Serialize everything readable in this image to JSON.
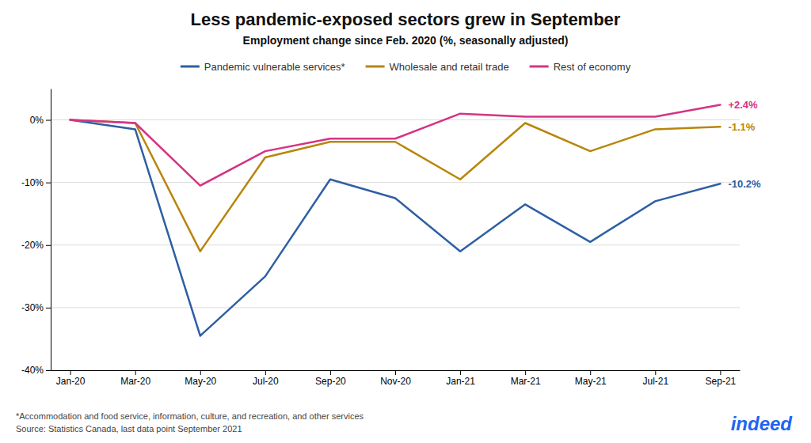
{
  "chart_data": {
    "type": "line",
    "title": "Less pandemic-exposed sectors grew in September",
    "subtitle": "Employment change since Feb. 2020 (%, seasonally adjusted)",
    "notes": [
      "*Accommodation and food service, information, culture, and recreation, and other services",
      "Source: Statistics Canada, last data point September 2021"
    ],
    "logo": "indeed",
    "categories": [
      "Jan-20",
      "Mar-20",
      "May-20",
      "Jul-20",
      "Sep-20",
      "Nov-20",
      "Jan-21",
      "Mar-21",
      "May-21",
      "Jul-21",
      "Sep-21"
    ],
    "series": [
      {
        "name": "Pandemic vulnerable services*",
        "color": "#2E5FA3",
        "values": [
          0.0,
          -1.5,
          -34.5,
          -25.0,
          -9.5,
          -12.5,
          -21.0,
          -13.5,
          -19.5,
          -13.0,
          -10.2
        ]
      },
      {
        "name": "Wholesale and retail trade",
        "color": "#B8860B",
        "values": [
          0.0,
          -0.5,
          -21.0,
          -6.0,
          -3.5,
          -3.5,
          -9.5,
          -0.5,
          -5.0,
          -1.5,
          -1.1
        ]
      },
      {
        "name": "Rest of economy",
        "color": "#D63384",
        "values": [
          0.0,
          -0.5,
          -10.5,
          -5.0,
          -3.0,
          -3.0,
          1.0,
          0.5,
          0.5,
          0.5,
          2.4
        ]
      }
    ],
    "annotations": [
      {
        "text": "+2.4%",
        "x": "Sep-21",
        "y": 2.4,
        "color": "#D63384"
      },
      {
        "text": "-1.1%",
        "x": "Sep-21",
        "y": -1.1,
        "color": "#B8860B"
      },
      {
        "text": "-10.2%",
        "x": "Sep-21",
        "y": -10.2,
        "color": "#2E5FA3"
      }
    ],
    "ylim": [
      -40,
      5
    ],
    "yticks": [
      {
        "value": 0,
        "label": "0%"
      },
      {
        "value": -10,
        "label": "-10%"
      },
      {
        "value": -20,
        "label": "-20%"
      },
      {
        "value": -30,
        "label": "-30%"
      },
      {
        "value": -40,
        "label": "-40%"
      }
    ],
    "grid": true,
    "legend": "top"
  }
}
